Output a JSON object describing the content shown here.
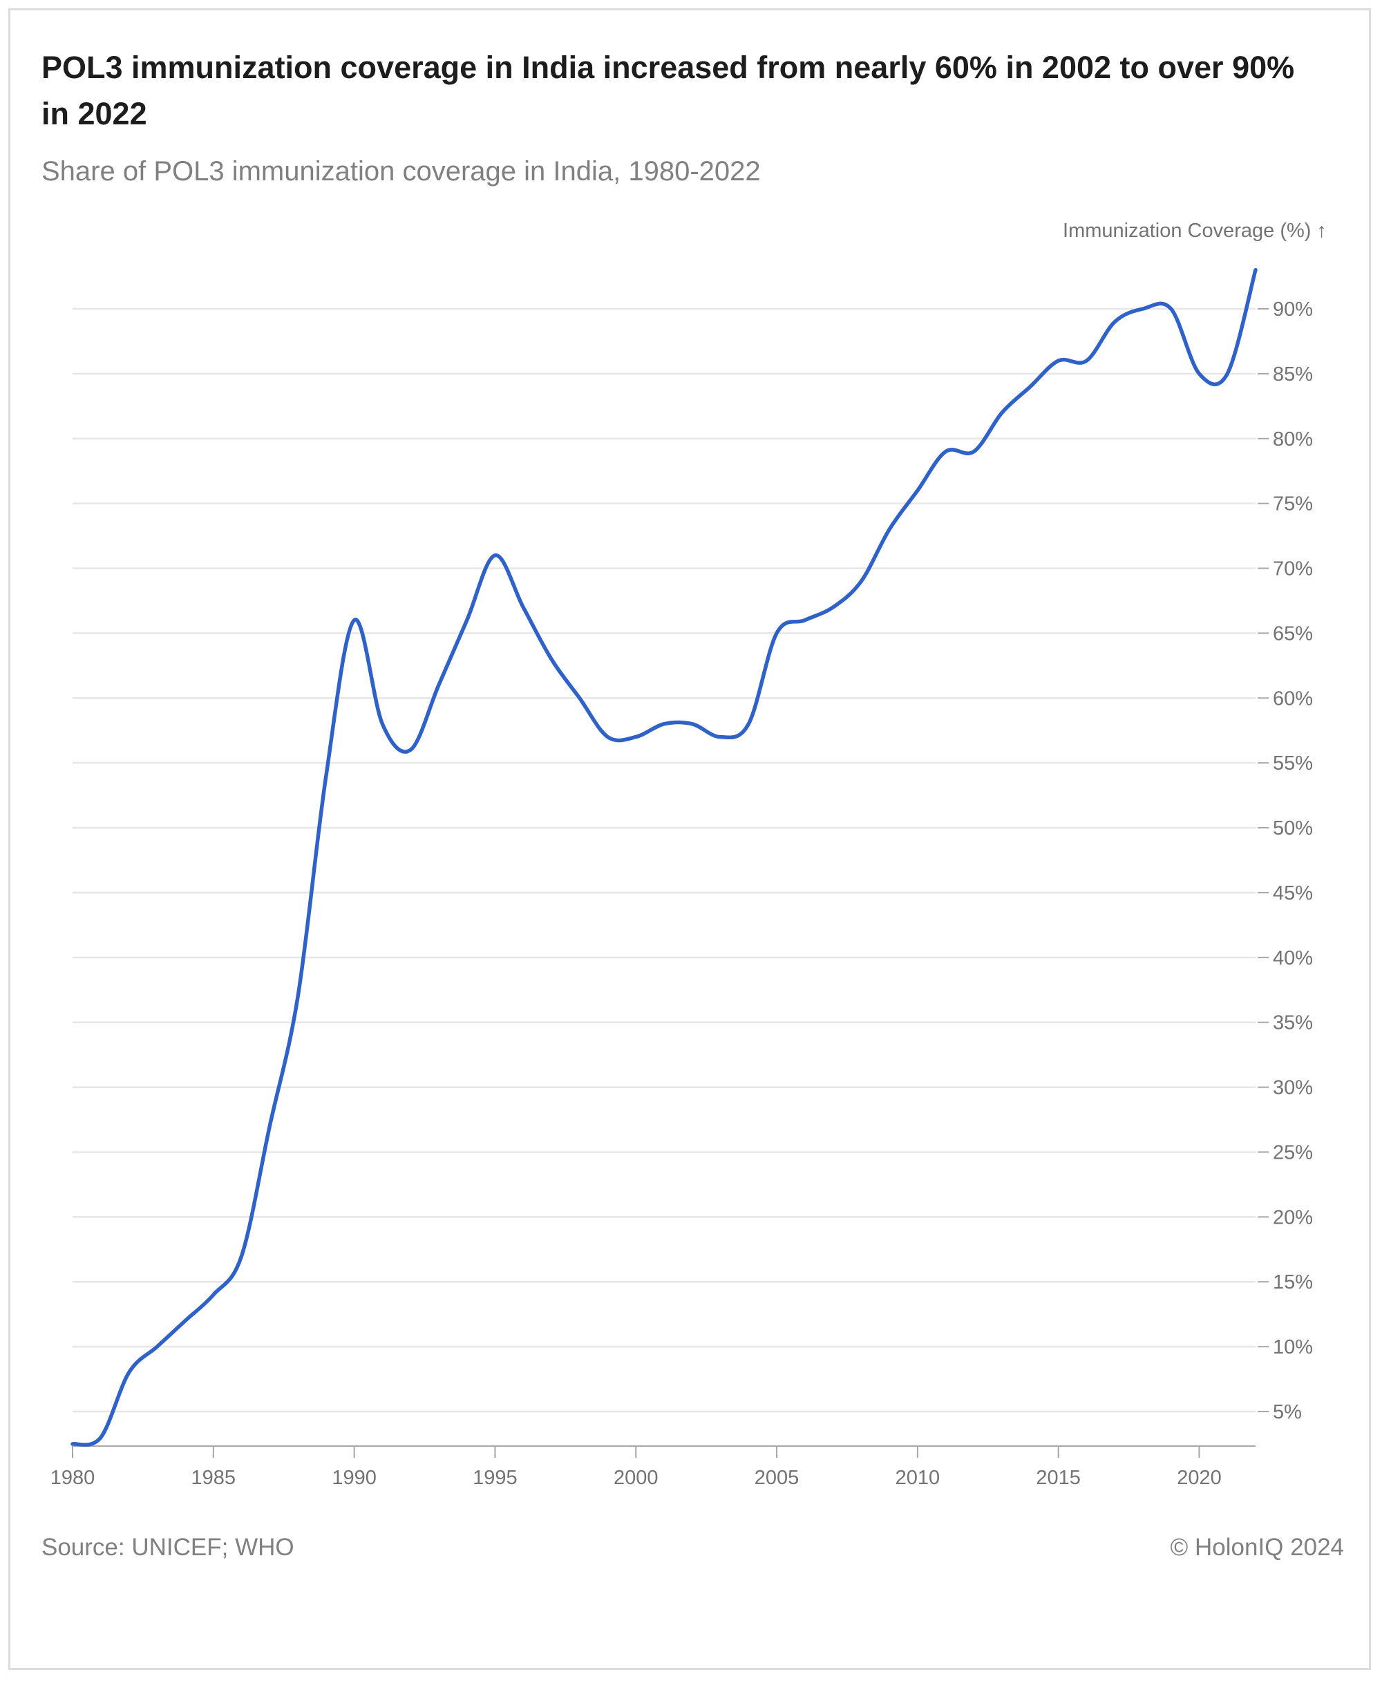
{
  "header": {
    "title": "POL3 immunization coverage in India increased from nearly 60% in 2002 to over 90% in 2022",
    "subtitle": "Share of POL3 immunization coverage in India, 1980-2022"
  },
  "footer": {
    "source": "Source: UNICEF; WHO",
    "copyright": "© HolonIQ 2024"
  },
  "chart_data": {
    "type": "line",
    "title": "POL3 immunization coverage in India increased from nearly 60% in 2002 to over 90% in 2022",
    "subtitle": "Share of POL3 immunization coverage in India, 1980-2022",
    "ylabel": "Immunization Coverage (%) ↑",
    "xlim": [
      1980,
      2022
    ],
    "ylim": [
      2.5,
      94
    ],
    "x_ticks": [
      1980,
      1985,
      1990,
      1995,
      2000,
      2005,
      2010,
      2015,
      2020
    ],
    "x_tick_labels": [
      "1980",
      "1985",
      "1990",
      "1995",
      "2000",
      "2005",
      "2010",
      "2015",
      "2020"
    ],
    "y_ticks": [
      5,
      10,
      15,
      20,
      25,
      30,
      35,
      40,
      45,
      50,
      55,
      60,
      65,
      70,
      75,
      80,
      85,
      90
    ],
    "y_tick_labels": [
      "5%",
      "10%",
      "15%",
      "20%",
      "25%",
      "30%",
      "35%",
      "40%",
      "45%",
      "50%",
      "55%",
      "60%",
      "65%",
      "70%",
      "75%",
      "80%",
      "85%",
      "90%"
    ],
    "y_axis_position": "right",
    "grid": true,
    "colors": {
      "line": "#2f62c9",
      "grid": "#e6e6e6",
      "text": "#737373"
    },
    "x": [
      1980,
      1981,
      1982,
      1983,
      1984,
      1985,
      1986,
      1987,
      1988,
      1989,
      1990,
      1991,
      1992,
      1993,
      1994,
      1995,
      1996,
      1997,
      1998,
      1999,
      2000,
      2001,
      2002,
      2003,
      2004,
      2005,
      2006,
      2007,
      2008,
      2009,
      2010,
      2011,
      2012,
      2013,
      2014,
      2015,
      2016,
      2017,
      2018,
      2019,
      2020,
      2021,
      2022
    ],
    "series": [
      {
        "values": [
          2.5,
          3,
          8,
          10,
          12,
          14,
          17,
          27,
          37,
          54,
          66,
          58,
          56,
          61,
          66,
          71,
          67,
          63,
          60,
          57,
          57,
          58,
          58,
          57,
          58,
          65,
          66,
          67,
          69,
          73,
          76,
          79,
          79,
          82,
          84,
          86,
          86,
          89,
          90,
          90,
          85,
          85,
          93
        ]
      }
    ]
  }
}
